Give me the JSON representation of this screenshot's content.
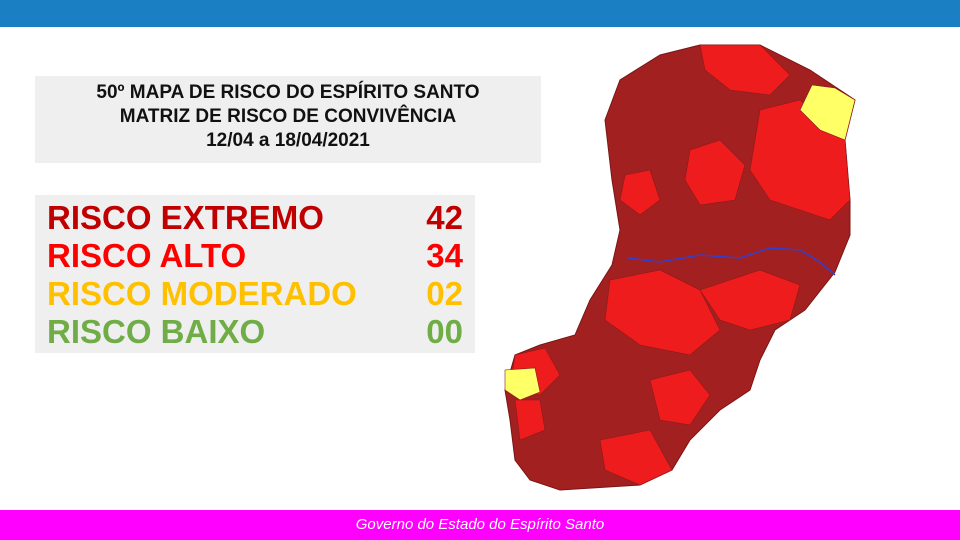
{
  "title": {
    "lines": [
      "50º MAPA DE RISCO DO ESPÍRITO SANTO",
      "MATRIZ DE RISCO DE CONVIVÊNCIA",
      "12/04 a 18/04/2021"
    ]
  },
  "risk_levels": [
    {
      "label": "RISCO EXTREMO",
      "count": "42",
      "color": "#c00000"
    },
    {
      "label": "RISCO ALTO",
      "count": "34",
      "color": "#ff0000"
    },
    {
      "label": "RISCO MODERADO",
      "count": "02",
      "color": "#ffc000"
    },
    {
      "label": "RISCO BAIXO",
      "count": "00",
      "color": "#70ad47"
    }
  ],
  "footer": "Governo do Estado do Espírito Santo"
}
